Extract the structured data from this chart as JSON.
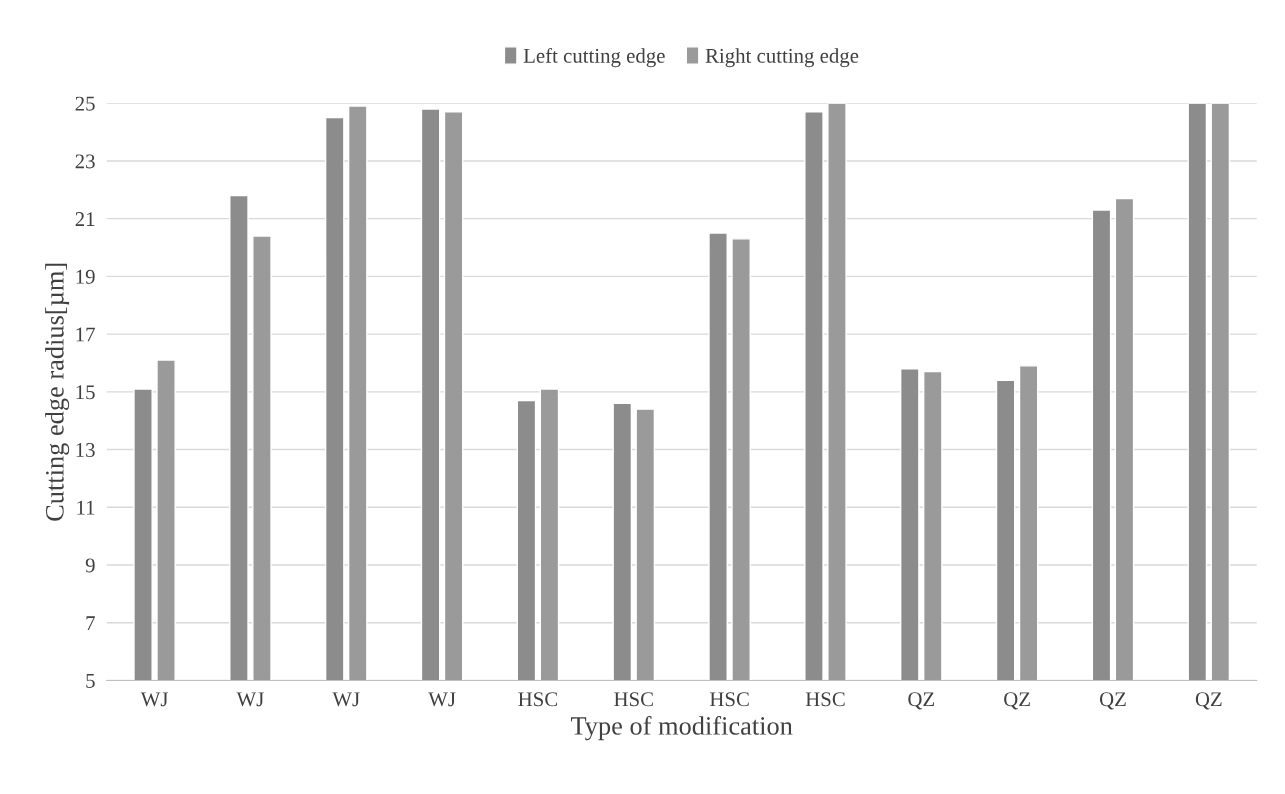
{
  "chart_data": {
    "type": "bar",
    "xlabel": "Type of modification",
    "ylabel": "Cutting edge radius[µm]",
    "categories": [
      "WJ",
      "WJ",
      "WJ",
      "WJ",
      "HSC",
      "HSC",
      "HSC",
      "HSC",
      "QZ",
      "QZ",
      "QZ",
      "QZ"
    ],
    "series": [
      {
        "name": "Left cutting edge",
        "color": "#8c8c8c",
        "values": [
          15.1,
          21.8,
          24.5,
          24.8,
          14.7,
          14.6,
          20.5,
          24.7,
          15.8,
          15.4,
          21.3,
          25
        ]
      },
      {
        "name": "Right cutting edge",
        "color": "#9a9a9a",
        "values": [
          16.1,
          20.4,
          24.9,
          24.7,
          15.1,
          14.4,
          20.3,
          25,
          15.7,
          15.9,
          21.7,
          25
        ]
      }
    ],
    "ylim": [
      5,
      25
    ],
    "yticks": [
      5,
      7,
      9,
      11,
      13,
      15,
      17,
      19,
      21,
      23,
      25
    ],
    "grid": "y",
    "legend": "top"
  }
}
